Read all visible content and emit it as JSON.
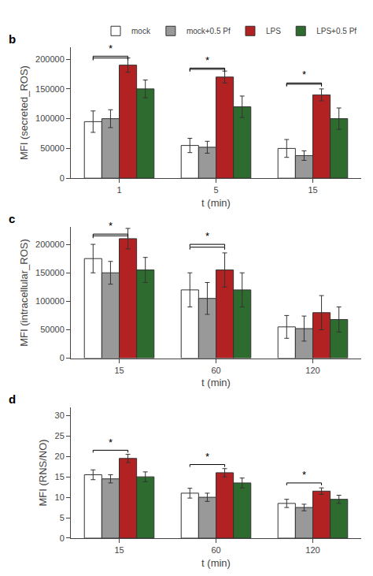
{
  "chart_data": [
    {
      "type": "bar",
      "title": "b",
      "x_label": "t (min)",
      "y_label": "MFI (secreted_ROS)",
      "categories": [
        "1",
        "5",
        "15"
      ],
      "series": [
        {
          "name": "mock",
          "color": "#FFFFFF",
          "values": [
            95000,
            55000,
            50000
          ],
          "errors": [
            18000,
            12000,
            15000
          ]
        },
        {
          "name": "mock+0.5 Pf",
          "color": "#999999",
          "values": [
            100000,
            52000,
            38000
          ],
          "errors": [
            15000,
            10000,
            8000
          ]
        },
        {
          "name": "LPS",
          "color": "#B22222",
          "values": [
            190000,
            170000,
            140000
          ],
          "errors": [
            12000,
            10000,
            10000
          ]
        },
        {
          "name": "LPS+0.5 Pf",
          "color": "#2E6B2E",
          "values": [
            150000,
            120000,
            100000
          ],
          "errors": [
            15000,
            18000,
            18000
          ]
        }
      ],
      "ylim": [
        0,
        220000
      ],
      "yticks": [
        0,
        50000,
        100000,
        150000,
        200000
      ],
      "grid": false,
      "legend": "upper right",
      "annotations": [
        {
          "category": "1",
          "from": "mock",
          "to": "LPS",
          "y": [
            205000,
            202000
          ],
          "label": "*"
        },
        {
          "category": "5",
          "from": "mock",
          "to": "LPS",
          "y": [
            185000,
            183000
          ],
          "label": "*"
        },
        {
          "category": "15",
          "from": "mock",
          "to": "LPS",
          "y": [
            160000,
            158000
          ],
          "label": "*"
        }
      ]
    },
    {
      "type": "bar",
      "title": "c",
      "x_label": "t (min)",
      "y_label": "MFI (intracellular_ROS)",
      "categories": [
        "15",
        "60",
        "120"
      ],
      "series": [
        {
          "name": "mock",
          "color": "#FFFFFF",
          "values": [
            175000,
            120000,
            55000
          ],
          "errors": [
            25000,
            30000,
            20000
          ]
        },
        {
          "name": "mock+0.5 Pf",
          "color": "#999999",
          "values": [
            150000,
            105000,
            52000
          ],
          "errors": [
            20000,
            28000,
            22000
          ]
        },
        {
          "name": "LPS",
          "color": "#B22222",
          "values": [
            210000,
            155000,
            80000
          ],
          "errors": [
            18000,
            30000,
            30000
          ]
        },
        {
          "name": "LPS+0.5 Pf",
          "color": "#2E6B2E",
          "values": [
            155000,
            120000,
            68000
          ],
          "errors": [
            22000,
            30000,
            22000
          ]
        }
      ],
      "ylim": [
        0,
        230000
      ],
      "yticks": [
        0,
        50000,
        100000,
        150000,
        200000
      ],
      "grid": false,
      "annotations": [
        {
          "category": "15",
          "from": "mock",
          "to": "LPS",
          "y": [
            218000,
            215000
          ],
          "label": "*"
        },
        {
          "category": "60",
          "from": "mock",
          "to": "LPS",
          "y": [
            200000,
            195000
          ],
          "label": "*"
        }
      ]
    },
    {
      "type": "bar",
      "title": "d",
      "x_label": "t (min)",
      "y_label": "MFI (RNS/NO)",
      "categories": [
        "15",
        "60",
        "120"
      ],
      "series": [
        {
          "name": "mock",
          "color": "#FFFFFF",
          "values": [
            15.5,
            11.0,
            8.5
          ],
          "errors": [
            1.2,
            1.2,
            1.0
          ]
        },
        {
          "name": "mock+0.5 Pf",
          "color": "#999999",
          "values": [
            14.5,
            10.0,
            7.5
          ],
          "errors": [
            1.0,
            1.0,
            0.8
          ]
        },
        {
          "name": "LPS",
          "color": "#B22222",
          "values": [
            19.5,
            16.0,
            11.5
          ],
          "errors": [
            1.0,
            1.0,
            0.8
          ]
        },
        {
          "name": "LPS+0.5 Pf",
          "color": "#2E6B2E",
          "values": [
            15.0,
            13.5,
            9.5
          ],
          "errors": [
            1.2,
            1.2,
            1.0
          ]
        }
      ],
      "ylim": [
        0,
        32
      ],
      "yticks": [
        0,
        5,
        10,
        15,
        20,
        25,
        30
      ],
      "grid": false,
      "annotations": [
        {
          "category": "15",
          "from": "mock",
          "to": "LPS",
          "y": [
            21.5
          ],
          "label": "*"
        },
        {
          "category": "60",
          "from": "mock",
          "to": "LPS",
          "y": [
            18.0
          ],
          "label": "*"
        },
        {
          "category": "120",
          "from": "mock",
          "to": "LPS",
          "y": [
            13.5
          ],
          "label": "*"
        }
      ]
    }
  ]
}
